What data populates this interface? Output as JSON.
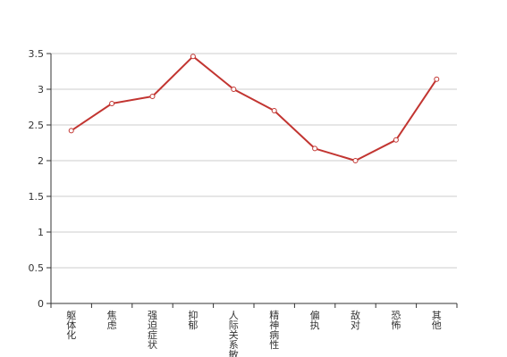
{
  "chart_data": {
    "type": "line",
    "categories": [
      "躯体化",
      "焦虑",
      "强迫症状",
      "抑郁",
      "人际关系敏感",
      "精神病性",
      "偏执",
      "敌对",
      "恐怖",
      "其他"
    ],
    "series": [
      {
        "values": [
          2.42,
          2.8,
          2.9,
          3.46,
          3.0,
          2.7,
          2.17,
          2.0,
          2.29,
          3.14
        ]
      }
    ],
    "y_ticks": [
      "0",
      "0.5",
      "1",
      "1.5",
      "2",
      "2.5",
      "3",
      "3.5"
    ],
    "ylim": [
      0,
      3.5
    ],
    "grid": true,
    "line_color": "#c23531",
    "title": "",
    "xlabel": "",
    "ylabel": ""
  }
}
